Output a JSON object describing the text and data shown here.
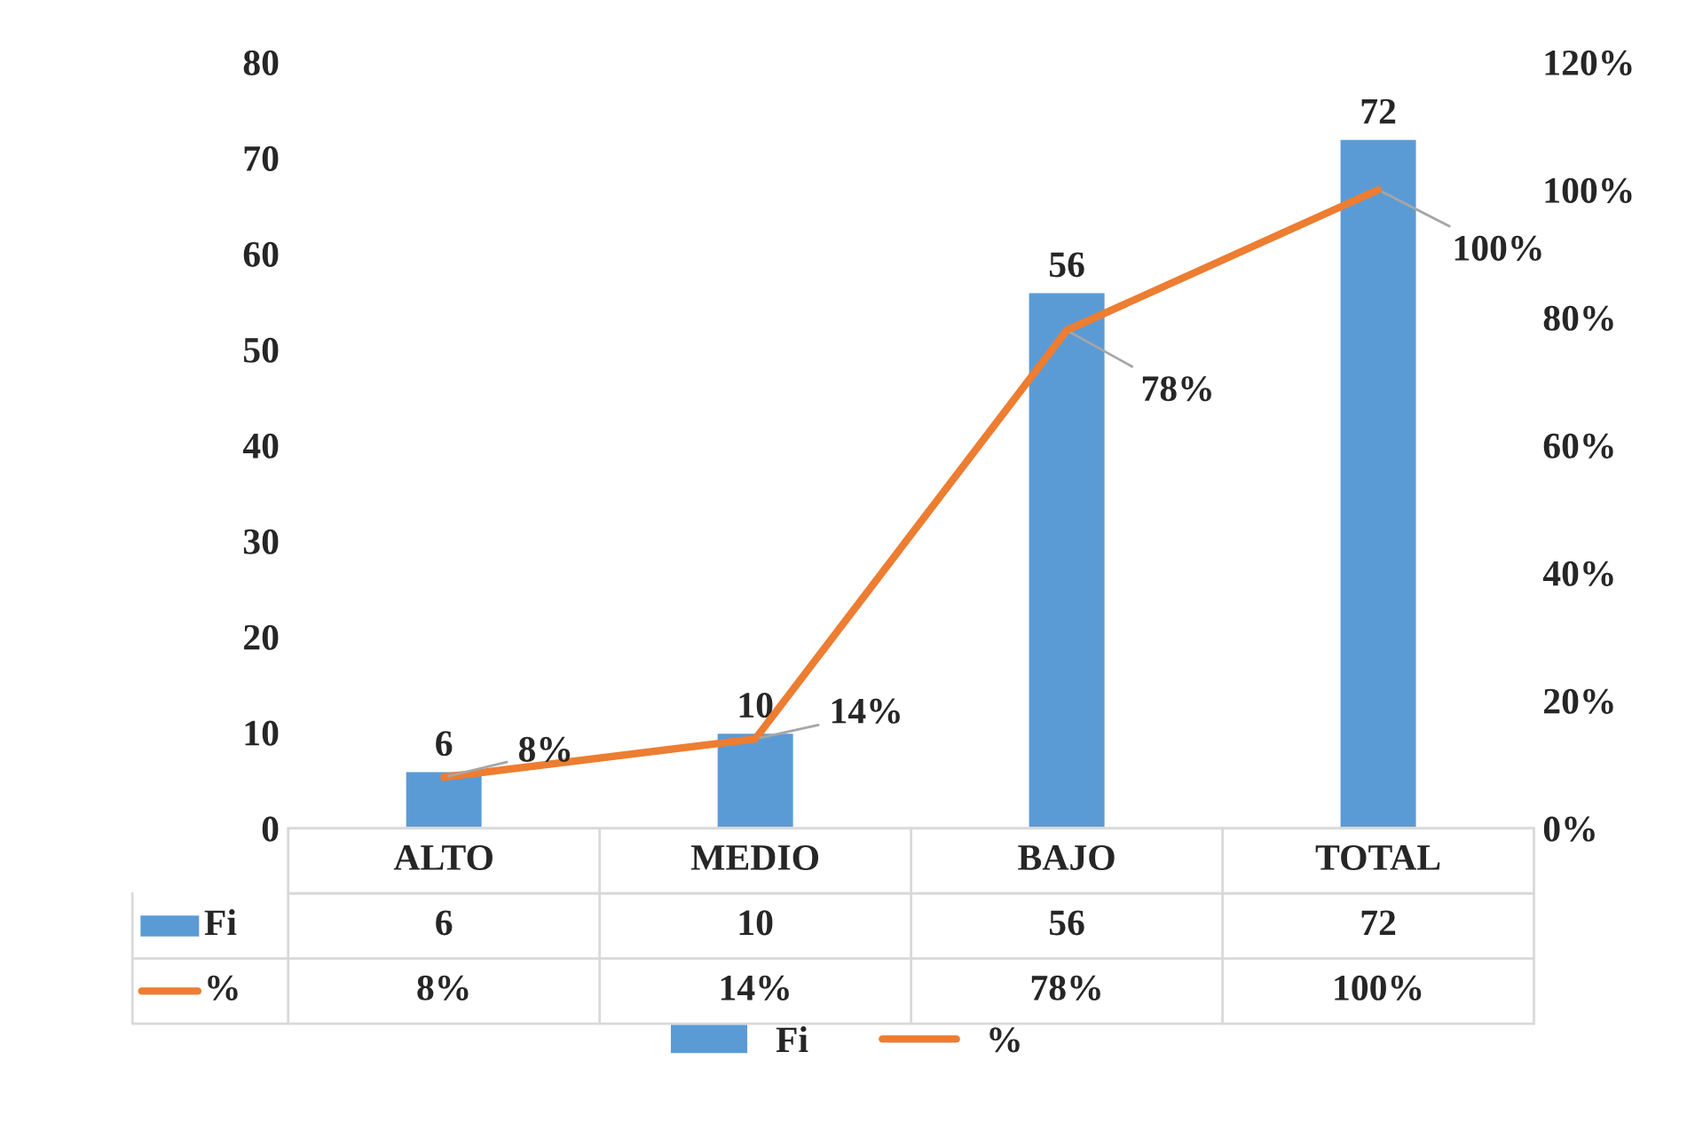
{
  "chart_data": {
    "type": "bar",
    "categories": [
      "ALTO",
      "MEDIO",
      "BAJO",
      "TOTAL"
    ],
    "series": [
      {
        "name": "Fi",
        "color": "#5b9bd5",
        "values": [
          6,
          10,
          56,
          72
        ],
        "value_labels": [
          "6",
          "10",
          "56",
          "72"
        ]
      },
      {
        "name": "%",
        "type": "line",
        "axis": "y2",
        "color": "#ed7d31",
        "values": [
          8,
          14,
          78,
          100
        ],
        "value_labels": [
          "8%",
          "14%",
          "78%",
          "100%"
        ]
      }
    ],
    "data_labels": true,
    "legend": "bottom",
    "marker": "none",
    "line_style": "solid",
    "ylim": [
      0,
      80
    ],
    "yticks": [
      0,
      10,
      20,
      30,
      40,
      50,
      60,
      70,
      80
    ],
    "y2lim": [
      0,
      120
    ],
    "y2ticks": [
      {
        "value": 0,
        "label": "0%"
      },
      {
        "value": 20,
        "label": "20%"
      },
      {
        "value": 40,
        "label": "40%"
      },
      {
        "value": 60,
        "label": "60%"
      },
      {
        "value": 80,
        "label": "80%"
      },
      {
        "value": 100,
        "label": "100%"
      },
      {
        "value": 120,
        "label": "120%"
      }
    ]
  }
}
